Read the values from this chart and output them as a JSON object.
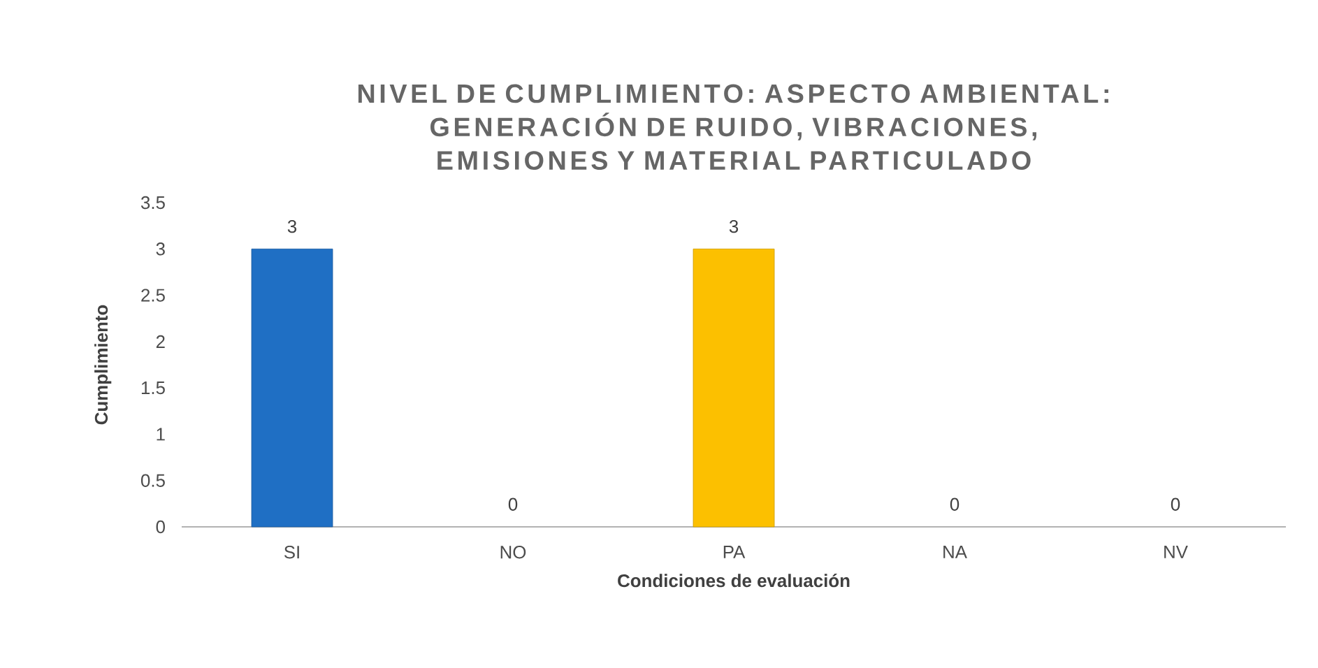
{
  "chart_data": {
    "type": "bar",
    "title": "NIVEL DE CUMPLIMIENTO: ASPECTO AMBIENTAL: GENERACIÓN DE RUIDO, VIBRACIONES, EMISIONES Y MATERIAL PARTICULADO",
    "xlabel": "Condiciones de evaluación",
    "ylabel": "Cumplimiento",
    "categories": [
      "SI",
      "NO",
      "PA",
      "NA",
      "NV"
    ],
    "values": [
      3,
      0,
      3,
      0,
      0
    ],
    "colors": [
      "#1f6fc4",
      null,
      "#fcc000",
      null,
      null
    ],
    "ylim": [
      0,
      3.5
    ],
    "yticks": [
      0,
      0.5,
      1,
      1.5,
      2,
      2.5,
      3,
      3.5
    ],
    "data_labels": true,
    "grid": false
  }
}
